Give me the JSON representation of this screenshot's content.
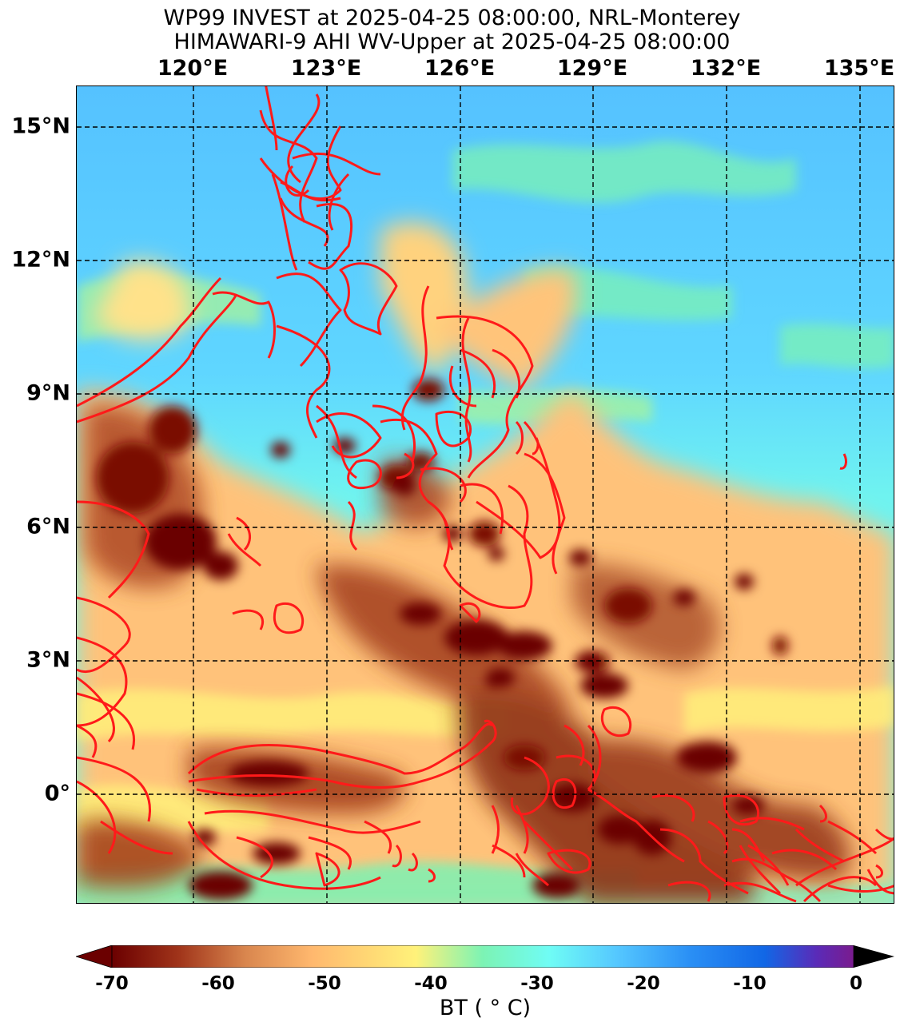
{
  "title": {
    "line1": "WP99 INVEST at 2025-04-25 08:00:00, NRL-Monterey",
    "line2": "HIMAWARI-9 AHI WV-Upper at 2025-04-25 08:00:00"
  },
  "lon_labels": [
    "120°E",
    "123°E",
    "126°E",
    "129°E",
    "132°E",
    "135°E"
  ],
  "lat_labels": [
    "15°N",
    "12°N",
    "9°N",
    "6°N",
    "3°N",
    "0°"
  ],
  "colorbar": {
    "ticks": [
      "-70",
      "-60",
      "-50",
      "-40",
      "-30",
      "-20",
      "-10",
      "0"
    ],
    "label": "BT ( ° C)",
    "colors": [
      "#6b0000",
      "#a0341a",
      "#d9864e",
      "#ffb86e",
      "#fff27a",
      "#7cf3b4",
      "#6ffcf5",
      "#55c8ff",
      "#2a8ff5",
      "#1167e6",
      "#5a2bb8",
      "#7a1b8e"
    ]
  },
  "palette": {
    "cold_top": "#6b0000",
    "mid": "#ffc47a",
    "clear": "#6ffcf5",
    "dry": "#55c8ff",
    "coast": "#ff1a1a"
  }
}
